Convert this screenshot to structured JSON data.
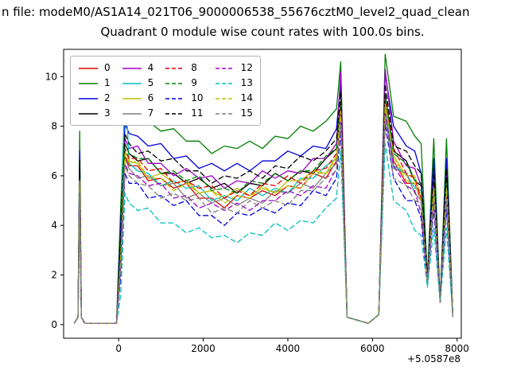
{
  "chart_data": {
    "type": "line",
    "suptitle": "n file: modeM0/AS1A14_021T06_9000006538_55676cztM0_level2_quad_clean",
    "title": "Quadrant 0 module wise count rates with 100.0s bins.",
    "xlabel": "",
    "ylabel": "",
    "x_offset_label": "+5.0587e8",
    "xlim": [
      -1300,
      8100
    ],
    "ylim": [
      -0.55,
      11.1
    ],
    "xticks": [
      0,
      2000,
      4000,
      6000,
      8000
    ],
    "yticks": [
      0,
      2,
      4,
      6,
      8,
      10
    ],
    "grid": false,
    "legend_position": "upper-left",
    "legend_columns": 4,
    "x": [
      -1050,
      -960,
      -920,
      -880,
      -800,
      -400,
      -50,
      50,
      150,
      250,
      450,
      700,
      1000,
      1300,
      1600,
      1900,
      2200,
      2500,
      2800,
      3100,
      3400,
      3700,
      4000,
      4300,
      4600,
      4900,
      5150,
      5250,
      5400,
      5900,
      6150,
      6300,
      6500,
      6800,
      7000,
      7150,
      7300,
      7450,
      7600,
      7750,
      7900
    ],
    "series": [
      {
        "name": "0",
        "color": "#e00000",
        "dash": "solid",
        "values": [
          0.05,
          0.3,
          5.7,
          0.3,
          0.05,
          0.05,
          0.05,
          2.7,
          6.8,
          6.4,
          6.4,
          5.8,
          5.9,
          5.5,
          5.7,
          5.1,
          5.1,
          4.7,
          5.2,
          5.1,
          5.4,
          5.2,
          5.6,
          5.5,
          6.1,
          5.9,
          6.6,
          8.5,
          0.3,
          0.05,
          0.4,
          8.8,
          6.6,
          5.7,
          5.7,
          5.0,
          1.7,
          5.4,
          0.9,
          5.4,
          0.3
        ]
      },
      {
        "name": "1",
        "color": "#008000",
        "dash": "solid",
        "values": [
          0.05,
          0.3,
          7.8,
          0.3,
          0.05,
          0.05,
          0.05,
          4.8,
          8.9,
          8.5,
          8.1,
          8.2,
          7.8,
          7.9,
          7.4,
          7.4,
          6.9,
          7.2,
          7.1,
          7.4,
          7.1,
          7.6,
          7.5,
          8.0,
          7.8,
          8.2,
          8.7,
          10.6,
          0.3,
          0.05,
          0.4,
          10.9,
          8.4,
          8.2,
          7.6,
          7.3,
          1.9,
          7.5,
          0.9,
          7.5,
          0.3
        ]
      },
      {
        "name": "2",
        "color": "#0000e0",
        "dash": "solid",
        "values": [
          0.05,
          0.3,
          7.0,
          0.3,
          0.05,
          0.05,
          0.05,
          4.0,
          8.1,
          7.7,
          7.6,
          7.2,
          7.3,
          6.7,
          6.8,
          6.3,
          6.5,
          6.2,
          6.5,
          6.2,
          6.6,
          6.6,
          7.0,
          6.8,
          7.2,
          7.1,
          7.9,
          9.8,
          0.3,
          0.05,
          0.4,
          10.1,
          8.0,
          7.2,
          7.0,
          6.1,
          1.8,
          6.7,
          0.9,
          6.7,
          0.3
        ]
      },
      {
        "name": "3",
        "color": "#000000",
        "dash": "solid",
        "values": [
          0.05,
          0.3,
          6.2,
          0.3,
          0.05,
          0.05,
          0.05,
          3.2,
          7.3,
          6.9,
          6.6,
          6.7,
          6.1,
          6.1,
          5.7,
          5.9,
          5.5,
          5.7,
          5.3,
          5.7,
          5.6,
          6.1,
          5.8,
          6.2,
          6.1,
          6.7,
          7.1,
          9.0,
          0.3,
          0.05,
          0.4,
          9.3,
          7.0,
          6.6,
          5.8,
          5.6,
          1.7,
          5.9,
          0.9,
          5.9,
          0.3
        ]
      },
      {
        "name": "4",
        "color": "#a000c8",
        "dash": "solid",
        "values": [
          0.05,
          0.3,
          6.4,
          0.3,
          0.05,
          0.05,
          0.05,
          3.4,
          7.5,
          7.1,
          7.2,
          6.5,
          6.5,
          6.0,
          6.3,
          5.9,
          6.0,
          5.5,
          5.8,
          5.7,
          6.2,
          5.9,
          6.2,
          6.1,
          6.7,
          6.7,
          7.3,
          10.2,
          0.3,
          0.05,
          0.4,
          10.3,
          7.4,
          6.4,
          6.3,
          5.6,
          1.8,
          6.1,
          0.9,
          6.1,
          0.3
        ]
      },
      {
        "name": "5",
        "color": "#00bfbf",
        "dash": "solid",
        "values": [
          0.05,
          0.3,
          5.8,
          0.3,
          0.05,
          0.05,
          0.05,
          2.8,
          9.9,
          6.5,
          6.2,
          6.1,
          5.6,
          5.8,
          5.5,
          5.6,
          5.0,
          5.2,
          5.0,
          5.5,
          5.2,
          5.5,
          5.3,
          5.9,
          5.9,
          6.4,
          6.7,
          8.6,
          0.3,
          0.05,
          0.4,
          8.9,
          6.4,
          6.1,
          5.5,
          5.4,
          1.7,
          5.5,
          0.9,
          5.5,
          0.3
        ]
      },
      {
        "name": "6",
        "color": "#bfbf00",
        "dash": "solid",
        "values": [
          0.05,
          0.3,
          5.9,
          0.3,
          0.05,
          0.05,
          0.05,
          2.9,
          7.0,
          6.6,
          6.5,
          5.9,
          6.1,
          5.7,
          5.8,
          5.3,
          5.4,
          5.1,
          5.5,
          5.2,
          5.5,
          5.3,
          5.8,
          5.8,
          6.2,
          6.1,
          6.8,
          8.7,
          0.3,
          0.05,
          0.4,
          9.0,
          6.8,
          6.0,
          6.0,
          5.1,
          1.7,
          5.6,
          0.9,
          5.6,
          0.3
        ]
      },
      {
        "name": "7",
        "color": "#7f7f7f",
        "dash": "solid",
        "values": [
          0.05,
          0.3,
          5.6,
          0.3,
          0.05,
          0.05,
          0.05,
          2.6,
          6.7,
          6.3,
          5.9,
          6.0,
          5.6,
          5.7,
          5.1,
          5.3,
          4.9,
          5.1,
          4.8,
          5.1,
          4.9,
          5.4,
          5.3,
          5.7,
          5.5,
          6.1,
          6.5,
          8.4,
          0.3,
          0.05,
          0.4,
          8.7,
          6.3,
          6.1,
          5.3,
          5.0,
          1.7,
          5.3,
          0.9,
          5.3,
          0.3
        ]
      },
      {
        "name": "8",
        "color": "#e00000",
        "dash": "dashed",
        "values": [
          0.05,
          0.3,
          6.0,
          0.3,
          0.05,
          0.05,
          0.05,
          3.0,
          7.1,
          6.7,
          6.7,
          6.2,
          6.3,
          5.7,
          5.8,
          5.5,
          5.6,
          5.1,
          5.4,
          5.2,
          5.7,
          5.6,
          6.0,
          5.7,
          6.2,
          6.3,
          6.9,
          8.8,
          0.3,
          0.05,
          0.4,
          9.1,
          7.1,
          6.1,
          5.9,
          5.1,
          1.7,
          5.7,
          0.9,
          5.7,
          0.3
        ]
      },
      {
        "name": "9",
        "color": "#008000",
        "dash": "dashed",
        "values": [
          0.05,
          0.3,
          6.2,
          0.3,
          0.05,
          0.05,
          0.05,
          3.2,
          7.3,
          6.9,
          6.7,
          6.7,
          6.1,
          6.2,
          5.8,
          6.0,
          5.4,
          5.5,
          5.3,
          5.8,
          5.7,
          6.1,
          5.8,
          6.2,
          6.2,
          6.8,
          7.1,
          9.0,
          0.3,
          0.05,
          0.4,
          9.3,
          6.9,
          6.5,
          5.8,
          5.7,
          1.7,
          5.9,
          0.9,
          5.9,
          0.3
        ]
      },
      {
        "name": "10",
        "color": "#0000e0",
        "dash": "dashed",
        "values": [
          0.05,
          0.3,
          5.0,
          0.3,
          0.05,
          0.05,
          0.05,
          2.0,
          6.1,
          5.7,
          5.7,
          5.1,
          5.2,
          4.8,
          5.0,
          4.4,
          4.4,
          4.0,
          4.5,
          4.4,
          4.7,
          4.5,
          4.9,
          4.8,
          5.4,
          5.2,
          5.9,
          7.8,
          0.3,
          0.05,
          0.4,
          8.1,
          5.9,
          5.0,
          5.0,
          4.3,
          1.6,
          4.7,
          0.9,
          4.7,
          0.3
        ]
      },
      {
        "name": "11",
        "color": "#000000",
        "dash": "dashed",
        "values": [
          0.05,
          0.3,
          6.6,
          0.3,
          0.05,
          0.05,
          0.05,
          3.6,
          7.7,
          7.3,
          6.9,
          7.0,
          6.6,
          6.7,
          6.2,
          6.2,
          5.7,
          6.0,
          5.9,
          6.2,
          5.9,
          6.4,
          6.3,
          6.8,
          6.6,
          7.0,
          7.5,
          9.4,
          0.3,
          0.05,
          0.4,
          9.7,
          7.2,
          7.0,
          6.4,
          6.1,
          1.8,
          6.3,
          0.9,
          6.3,
          0.3
        ]
      },
      {
        "name": "12",
        "color": "#a000c8",
        "dash": "dashed",
        "values": [
          0.05,
          0.3,
          5.4,
          0.3,
          0.05,
          0.05,
          0.05,
          2.4,
          6.5,
          6.1,
          6.0,
          5.6,
          5.7,
          5.1,
          5.2,
          4.7,
          4.9,
          4.6,
          4.9,
          4.6,
          5.0,
          5.0,
          5.4,
          5.2,
          5.6,
          5.5,
          6.3,
          8.2,
          0.3,
          0.05,
          0.4,
          8.5,
          6.4,
          5.6,
          5.4,
          4.5,
          1.7,
          5.1,
          0.9,
          5.1,
          0.3
        ]
      },
      {
        "name": "13",
        "color": "#00bfbf",
        "dash": "dashed",
        "values": [
          0.05,
          0.3,
          4.2,
          0.3,
          0.05,
          0.05,
          0.05,
          1.2,
          5.3,
          4.9,
          4.6,
          4.7,
          4.1,
          4.1,
          3.7,
          3.9,
          3.5,
          3.6,
          3.3,
          3.7,
          3.6,
          4.1,
          3.8,
          4.2,
          4.1,
          4.7,
          5.1,
          7.0,
          0.3,
          0.05,
          0.4,
          7.3,
          5.0,
          4.6,
          3.8,
          3.6,
          1.5,
          3.9,
          0.9,
          3.9,
          0.3
        ]
      },
      {
        "name": "14",
        "color": "#bfbf00",
        "dash": "dashed",
        "values": [
          0.05,
          0.3,
          5.8,
          0.3,
          0.05,
          0.05,
          0.05,
          2.8,
          6.9,
          6.5,
          6.6,
          5.9,
          5.9,
          5.4,
          5.7,
          5.3,
          5.4,
          4.9,
          5.2,
          5.1,
          5.6,
          5.3,
          5.6,
          5.5,
          6.1,
          6.1,
          6.7,
          8.6,
          0.3,
          0.05,
          0.4,
          8.9,
          6.8,
          5.8,
          5.7,
          5.0,
          1.7,
          5.5,
          0.9,
          5.5,
          0.3
        ]
      },
      {
        "name": "15",
        "color": "#7f7f7f",
        "dash": "dashed",
        "values": [
          0.05,
          0.3,
          5.3,
          0.3,
          0.05,
          0.05,
          0.05,
          2.3,
          6.4,
          6.0,
          5.7,
          5.6,
          5.1,
          5.3,
          5.0,
          5.1,
          4.5,
          4.7,
          4.5,
          5.0,
          4.7,
          5.0,
          4.8,
          5.4,
          5.4,
          5.9,
          6.2,
          8.1,
          0.3,
          0.05,
          0.4,
          8.4,
          5.9,
          5.6,
          5.0,
          4.9,
          1.7,
          5.0,
          0.9,
          5.0,
          0.3
        ]
      }
    ]
  }
}
